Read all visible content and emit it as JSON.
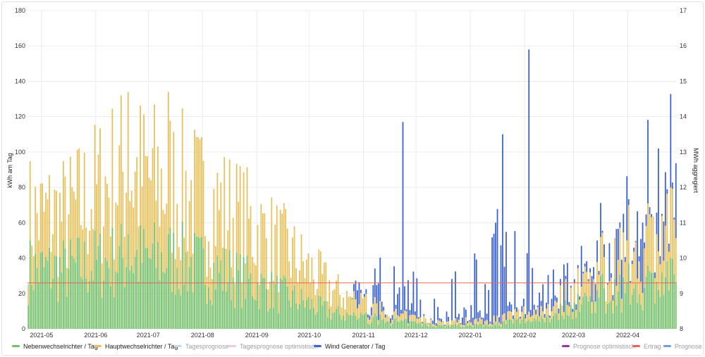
{
  "colors": {
    "neben": "#73bf69",
    "haupt": "#e7c25c",
    "tagesprognose": "#c0d8f0",
    "tagesprognose_opt": "#f0c8e0",
    "wind": "#3b62d8",
    "prognose_opt": "#a030b0",
    "ertrag": "#e8655a",
    "prognose": "#6f9be8",
    "grid": "#ececec"
  },
  "legend": {
    "items": [
      {
        "label": "Nebenwechselrichter / Tag",
        "color_key": "neben",
        "active": true
      },
      {
        "label": "Hauptwechselrichter / Tag",
        "color_key": "haupt",
        "active": true
      },
      {
        "label": "Tagesprognose",
        "color_key": "tagesprognose",
        "active": false
      },
      {
        "label": "Tagesprognose optimistisch",
        "color_key": "tagesprognose_opt",
        "active": false
      },
      {
        "label": "Wind Generator / Tag",
        "color_key": "wind",
        "active": true
      },
      {
        "label": "Prognose optimistisch",
        "color_key": "prognose_opt",
        "active": false
      },
      {
        "label": "Ertrag",
        "color_key": "ertrag",
        "active": false
      },
      {
        "label": "Prognose",
        "color_key": "prognose",
        "active": false
      }
    ]
  },
  "chart_data": {
    "type": "bar",
    "stacked": true,
    "x_start": "2021-04-23",
    "x_end": "2022-04-29",
    "x_tick_labels": [
      "2021-05",
      "2021-06",
      "2021-07",
      "2021-08",
      "2021-09",
      "2021-10",
      "2021-11",
      "2021-12",
      "2022-01",
      "2022-02",
      "2022-03",
      "2022-04"
    ],
    "ylabel_left": "kWh am Tag",
    "ylabel_right": "MWh aggregiert",
    "ylim_left": [
      0,
      180
    ],
    "yticks_left": [
      0,
      20,
      40,
      60,
      80,
      100,
      120,
      140,
      160,
      180
    ],
    "ylim_right": [
      8,
      17
    ],
    "yticks_right": [
      8,
      9,
      10,
      11,
      12,
      13,
      14,
      15,
      16,
      17
    ],
    "reference_line": {
      "name": "Ertrag",
      "axis": "right",
      "value": 9.3
    },
    "grid": true,
    "legend_position": "bottom",
    "series": [
      {
        "name": "Nebenwechselrichter / Tag",
        "color_key": "neben",
        "stack_order": 1
      },
      {
        "name": "Hauptwechselrichter / Tag",
        "color_key": "haupt",
        "stack_order": 2
      },
      {
        "name": "Wind Generator / Tag",
        "color_key": "wind",
        "stack_order": 3
      }
    ],
    "monthly_profile": [
      {
        "month": "2021-05",
        "neben": 38,
        "haupt_total": 72,
        "wind": 0
      },
      {
        "month": "2021-06",
        "neben": 45,
        "haupt_total": 100,
        "wind": 0
      },
      {
        "month": "2021-07",
        "neben": 45,
        "haupt_total": 92,
        "wind": 0
      },
      {
        "month": "2021-08",
        "neben": 35,
        "haupt_total": 75,
        "wind": 0
      },
      {
        "month": "2021-09",
        "neben": 22,
        "haupt_total": 52,
        "wind": 0
      },
      {
        "month": "2021-10",
        "neben": 10,
        "haupt_total": 24,
        "wind": 2
      },
      {
        "month": "2021-11",
        "neben": 5,
        "haupt_total": 9,
        "wind": 14
      },
      {
        "month": "2021-12",
        "neben": 2,
        "haupt_total": 4,
        "wind": 10
      },
      {
        "month": "2022-01",
        "neben": 3,
        "haupt_total": 6,
        "wind": 28
      },
      {
        "month": "2022-02",
        "neben": 8,
        "haupt_total": 14,
        "wind": 16
      },
      {
        "month": "2022-03",
        "neben": 22,
        "haupt_total": 38,
        "wind": 10
      },
      {
        "month": "2022-04",
        "neben": 30,
        "haupt_total": 60,
        "wind": 25
      }
    ],
    "peaks": [
      {
        "date": "2021-06-19",
        "total": 134
      },
      {
        "date": "2021-07-12",
        "total": 134
      },
      {
        "date": "2021-11-23",
        "wind_top": 117
      },
      {
        "date": "2022-01-19",
        "wind_top": 110
      },
      {
        "date": "2022-02-03",
        "wind_top": 158
      },
      {
        "date": "2022-04-18",
        "wind_top": 102
      }
    ]
  }
}
